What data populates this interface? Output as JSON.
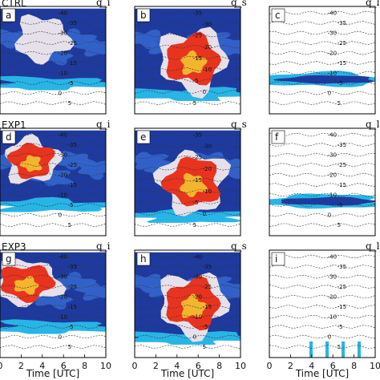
{
  "figure": {
    "row_labels": [
      "CTRL",
      "EXP1",
      "EXP3"
    ],
    "panel_letters": [
      "a",
      "b",
      "c",
      "d",
      "e",
      "f",
      "g",
      "h",
      "i"
    ],
    "quantity_labels": [
      "q_i",
      "q_s",
      "q_l"
    ],
    "xlabel": "Time [UTC]",
    "xticks": [
      "0",
      "2",
      "4",
      "6",
      "8",
      "10"
    ]
  },
  "colors": {
    "blue_dark": "#1f3a9e",
    "blue_mid": "#3366cc",
    "cyan": "#27b5e6",
    "light": "#e6e0ea",
    "red": "#e8341f",
    "orange": "#f4b52e",
    "contour": "#333333"
  },
  "chart_data": [
    {
      "panel": "a",
      "type": "heatmap",
      "quantity": "q_i",
      "x_range": [
        0,
        10
      ],
      "temperature_contours": [
        "-40",
        "-35",
        "-30",
        "-25",
        "-20",
        "-15",
        "-10",
        "-5",
        "0",
        "5"
      ],
      "max_intensity": "medium",
      "extent": "upper blue layer"
    },
    {
      "panel": "b",
      "type": "heatmap",
      "quantity": "q_s",
      "x_range": [
        0,
        10
      ],
      "temperature_contours": [
        "-35",
        "-30",
        "-25",
        "-20",
        "-15",
        "-10",
        "-5",
        "0",
        "5"
      ],
      "max_intensity": "high",
      "core_time": [
        3,
        8
      ]
    },
    {
      "panel": "c",
      "type": "heatmap",
      "quantity": "q_l",
      "x_range": [
        0,
        10
      ],
      "temperature_contours": [
        "-40",
        "-35",
        "-30",
        "-25",
        "-20",
        "-15",
        "-10",
        "-5",
        "0",
        "5"
      ],
      "max_intensity": "low",
      "extent": "thin layer near 0 C"
    },
    {
      "panel": "d",
      "type": "heatmap",
      "quantity": "q_i",
      "x_range": [
        0,
        10
      ],
      "temperature_contours": [
        "-40",
        "-35",
        "-30",
        "-25",
        "-20",
        "-15",
        "-10",
        "-5",
        "0",
        "5"
      ],
      "max_intensity": "high",
      "core_time": [
        1,
        5
      ]
    },
    {
      "panel": "e",
      "type": "heatmap",
      "quantity": "q_s",
      "x_range": [
        0,
        10
      ],
      "temperature_contours": [
        "-35",
        "-30",
        "-25",
        "-20",
        "-15",
        "-10",
        "-5",
        "0",
        "5"
      ],
      "max_intensity": "high",
      "core_time": [
        3,
        8
      ]
    },
    {
      "panel": "f",
      "type": "heatmap",
      "quantity": "q_l",
      "x_range": [
        0,
        10
      ],
      "temperature_contours": [
        "-40",
        "-35",
        "-30",
        "-25",
        "-20",
        "-15",
        "-10",
        "-5",
        "0",
        "5"
      ],
      "max_intensity": "low",
      "extent": "thin layer near 0 C"
    },
    {
      "panel": "g",
      "type": "heatmap",
      "quantity": "q_i",
      "x_range": [
        0,
        10
      ],
      "temperature_contours": [
        "-40",
        "-35",
        "-30",
        "-25",
        "-20",
        "-15",
        "-10",
        "-5",
        "0",
        "5"
      ],
      "max_intensity": "high",
      "core_time": [
        0,
        5
      ]
    },
    {
      "panel": "h",
      "type": "heatmap",
      "quantity": "q_s",
      "x_range": [
        0,
        10
      ],
      "temperature_contours": [
        "-40",
        "-35",
        "-30",
        "-25",
        "-20",
        "-15",
        "-10",
        "-5",
        "0",
        "5"
      ],
      "max_intensity": "high",
      "core_time": [
        3,
        8
      ]
    },
    {
      "panel": "i",
      "type": "heatmap",
      "quantity": "q_l",
      "x_range": [
        0,
        10
      ],
      "temperature_contours": [
        "-40",
        "-35",
        "-30",
        "-25",
        "-20",
        "-15",
        "-10",
        "-5",
        "0",
        "5"
      ],
      "max_intensity": "very low",
      "extent": "isolated spikes"
    }
  ]
}
